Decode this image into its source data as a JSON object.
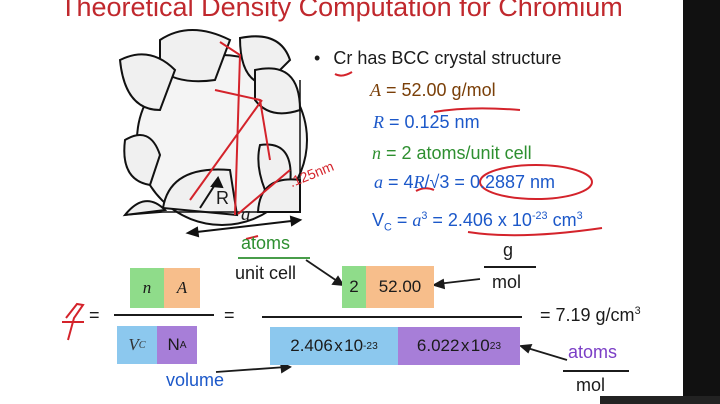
{
  "title": "Theoretical Density Computation for Chromium",
  "bullet": {
    "symbol": "•",
    "text_prefix": "Cr",
    "text_rest": " has BCC crystal structure"
  },
  "givens": {
    "A_label": "A",
    "A_eq": " = ",
    "A_value": "52.00 g/mol",
    "R_label": "R",
    "R_value": " = 0.125 nm",
    "n_label": "n",
    "n_value": " = 2 atoms/unit cell",
    "a_label": "a",
    "a_eq": " = 4",
    "a_R": "R",
    "a_sqrt": "/√3",
    "a_eq2": " = ",
    "a_value": "0.2887 nm",
    "vc_V": "V",
    "vc_sub": "C",
    "vc_eq": " = ",
    "vc_a": "a",
    "vc_a_exp": "3",
    "vc_eq2": " = ",
    "vc_value_main": "2.406 x 10",
    "vc_value_exp": "-23",
    "vc_unit": " cm",
    "vc_unit_exp": "3"
  },
  "diagram": {
    "R_label": "R",
    "a_label": "a",
    "handwritten_note": ".125nm"
  },
  "equation": {
    "rho_symbol": "ρ",
    "equals1": "=",
    "n_label": "n",
    "A_label": "A",
    "vc_label": "V",
    "vc_sub": "C",
    "na_label": "N",
    "na_sub": "A",
    "equals2": "=",
    "num_n": "2",
    "num_A": "52.00",
    "den_vc_main": "2.406 x 10",
    "den_vc_exp": "-23",
    "den_na_main": "6.022 x 10",
    "den_na_exp": "23",
    "result": "= 7.19 g/cm",
    "result_exp": "3"
  },
  "annotations": {
    "atoms": "atoms",
    "unit_cell": "unit cell",
    "g": "g",
    "mol": "mol",
    "volume": "volume",
    "atoms2": "atoms",
    "mol2": "mol"
  },
  "colors": {
    "title": "#c0282d",
    "brown": "#7a3f08",
    "blue": "#1c58c9",
    "green": "#2e8f30",
    "red_ink": "#d4232b",
    "green_box": "#8fdc8a",
    "orange_box": "#f7be8b",
    "blue_box": "#8cc8ee",
    "purple_box": "#a77ed8"
  }
}
